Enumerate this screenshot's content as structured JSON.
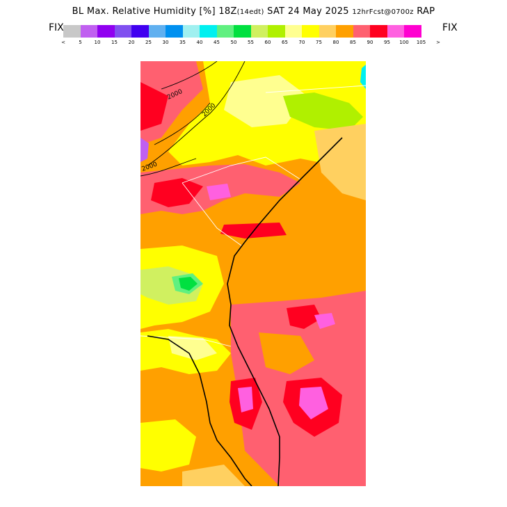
{
  "header": {
    "title_main": "BL Max. Relative Humidity [%] 18Z",
    "title_paren": "(14edt)",
    "title_date": " SAT 24 May 2025 ",
    "title_fcst": "12hrFcst@0700z",
    "title_model": " RAP"
  },
  "fix_left": "FIX",
  "fix_right": "FIX",
  "legend": {
    "colors": [
      "#c8c8c8",
      "#c060f0",
      "#9000f0",
      "#8050f0",
      "#4000f0",
      "#60b0f0",
      "#0090f0",
      "#a0f0f0",
      "#00f0f0",
      "#60f080",
      "#00e040",
      "#d0f060",
      "#b0f000",
      "#ffff90",
      "#ffff00",
      "#ffd060",
      "#ffa000",
      "#ff6070",
      "#ff0020",
      "#ff60e0",
      "#ff00d0"
    ],
    "tick_labels": [
      "<",
      "5",
      "10",
      "15",
      "20",
      "25",
      "30",
      "35",
      "40",
      "45",
      "50",
      "55",
      "60",
      "65",
      "70",
      "75",
      "80",
      "85",
      "90",
      "95",
      "100",
      "105",
      ">"
    ]
  },
  "map": {
    "contour_labels": [
      "2000",
      "2000",
      "2000"
    ]
  }
}
